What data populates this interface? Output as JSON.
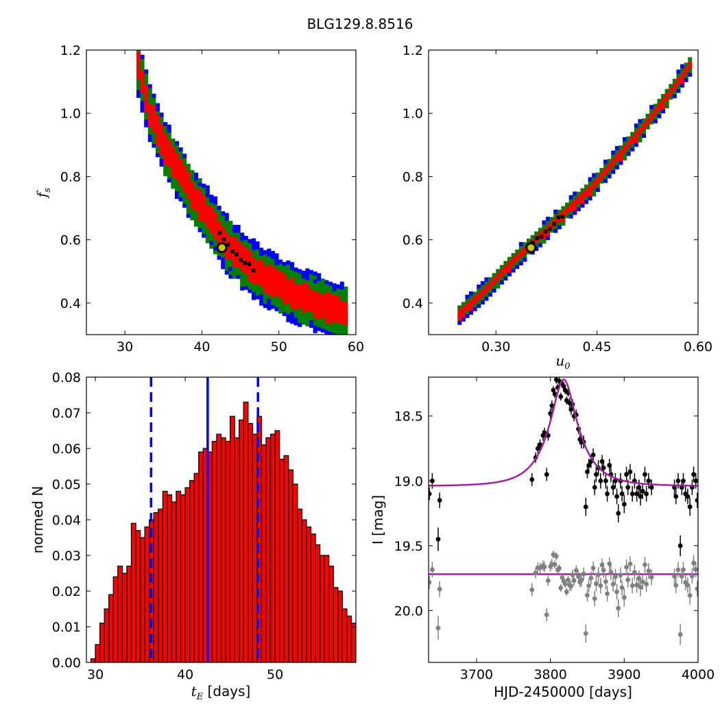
{
  "figure": {
    "title": "BLG129.8.8516"
  },
  "chart_data": [
    {
      "type": "heatmap",
      "xlim": [
        25,
        60
      ],
      "ylim": [
        0.3,
        1.2
      ],
      "xticks": [
        30,
        40,
        50,
        60
      ],
      "yticks": [
        0.4,
        0.6,
        0.8,
        1.0,
        1.2
      ],
      "xtick_labels": [
        "30",
        "40",
        "50",
        "60"
      ],
      "ytick_labels": [
        "0.4",
        "0.6",
        "0.8",
        "1.0",
        "1.2"
      ],
      "xlabel": "",
      "ylabel": "f_s",
      "confidence_colors": {
        "outer": "#0000ff",
        "middle": "#008000",
        "inner": "#ff0000",
        "core": "#000000"
      },
      "band_centerline": [
        [
          31.5,
          1.14
        ],
        [
          33,
          1.0
        ],
        [
          35,
          0.88
        ],
        [
          37,
          0.8
        ],
        [
          39,
          0.72
        ],
        [
          41,
          0.65
        ],
        [
          43,
          0.58
        ],
        [
          45,
          0.53
        ],
        [
          47,
          0.49
        ],
        [
          49,
          0.46
        ],
        [
          51,
          0.43
        ],
        [
          53,
          0.41
        ],
        [
          55,
          0.39
        ],
        [
          57,
          0.37
        ],
        [
          58.5,
          0.36
        ]
      ],
      "best_fit": {
        "x": 42.6,
        "y": 0.575
      },
      "marker_colors": {
        "ring": "#000000",
        "fill": "#c8c800"
      }
    },
    {
      "type": "heatmap",
      "xlim": [
        0.2,
        0.6
      ],
      "ylim": [
        0.3,
        1.2
      ],
      "xticks": [
        0.3,
        0.45,
        0.6
      ],
      "yticks": [
        0.4,
        0.6,
        0.8,
        1.0,
        1.2
      ],
      "xtick_labels": [
        "0.30",
        "0.45",
        "0.60"
      ],
      "ytick_labels": [
        "0.4",
        "0.6",
        "0.8",
        "1.0",
        "1.2"
      ],
      "xlabel": "u_0",
      "ylabel": "",
      "band_centerline": [
        [
          0.243,
          0.36
        ],
        [
          0.28,
          0.43
        ],
        [
          0.32,
          0.52
        ],
        [
          0.36,
          0.6
        ],
        [
          0.4,
          0.68
        ],
        [
          0.44,
          0.76
        ],
        [
          0.48,
          0.86
        ],
        [
          0.52,
          0.96
        ],
        [
          0.56,
          1.07
        ],
        [
          0.59,
          1.16
        ]
      ],
      "best_fit": {
        "x": 0.352,
        "y": 0.575
      }
    },
    {
      "type": "bar",
      "xlim": [
        29,
        59
      ],
      "ylim": [
        0,
        0.08
      ],
      "xticks": [
        30,
        40,
        50
      ],
      "yticks": [
        0.0,
        0.01,
        0.02,
        0.03,
        0.04,
        0.05,
        0.06,
        0.07,
        0.08
      ],
      "xtick_labels": [
        "30",
        "40",
        "50"
      ],
      "ytick_labels": [
        "0.00",
        "0.01",
        "0.02",
        "0.03",
        "0.04",
        "0.05",
        "0.06",
        "0.07",
        "0.08"
      ],
      "xlabel": "t_E",
      "xlabel_unit": "[days]",
      "ylabel": "normed N",
      "bin_start": 29.5,
      "bin_width": 0.5,
      "values": [
        0.001,
        0.005,
        0.011,
        0.015,
        0.019,
        0.024,
        0.027,
        0.025,
        0.027,
        0.039,
        0.037,
        0.035,
        0.038,
        0.04,
        0.042,
        0.043,
        0.048,
        0.047,
        0.045,
        0.048,
        0.047,
        0.049,
        0.051,
        0.053,
        0.059,
        0.06,
        0.059,
        0.062,
        0.064,
        0.063,
        0.062,
        0.069,
        0.063,
        0.068,
        0.073,
        0.067,
        0.064,
        0.069,
        0.061,
        0.063,
        0.064,
        0.065,
        0.057,
        0.058,
        0.054,
        0.05,
        0.043,
        0.04,
        0.038,
        0.036,
        0.033,
        0.03,
        0.03,
        0.027,
        0.021,
        0.02,
        0.015,
        0.013,
        0.011,
        0.008,
        0.007,
        0.006,
        0.004,
        0.003,
        0.002,
        0.001,
        0.001,
        0.0005
      ],
      "median": 42.5,
      "lower": 36.2,
      "upper": 48.1,
      "colors": {
        "bar": "#ff0000",
        "line": "#0000ff"
      }
    },
    {
      "type": "scatter",
      "xlim": [
        3635,
        4000
      ],
      "ylim": [
        20.4,
        18.2
      ],
      "xticks": [
        3700,
        3800,
        3900,
        4000
      ],
      "yticks": [
        18.5,
        19.0,
        19.5,
        20.0
      ],
      "xtick_labels": [
        "3700",
        "3800",
        "3900",
        "4000"
      ],
      "ytick_labels": [
        "18.5",
        "19.0",
        "19.5",
        "20.0"
      ],
      "xlabel": "HJD-2450000 [days]",
      "ylabel": "I [mag]",
      "model": {
        "t0": 3818,
        "tE": 42.5,
        "u0": 0.352,
        "fs": 0.575,
        "baseline": 19.04
      },
      "residual_offset": 19.72,
      "colors": {
        "data": "#000000",
        "residual": "#808080",
        "model": "#a020a0"
      },
      "series": [
        {
          "points": [
            [
              3636,
              19.1,
              0.05
            ],
            [
              3640,
              19.0,
              0.06
            ],
            [
              3648,
              19.45,
              0.09
            ],
            [
              3650,
              19.15,
              0.06
            ],
            [
              3775,
              18.99,
              0.05
            ],
            [
              3780,
              18.82,
              0.04
            ],
            [
              3783,
              18.75,
              0.04
            ],
            [
              3786,
              18.72,
              0.04
            ],
            [
              3790,
              18.65,
              0.04
            ],
            [
              3792,
              18.63,
              0.04
            ],
            [
              3795,
              18.95,
              0.05
            ],
            [
              3797,
              18.65,
              0.04
            ],
            [
              3800,
              18.48,
              0.04
            ],
            [
              3802,
              18.42,
              0.04
            ],
            [
              3804,
              18.3,
              0.03
            ],
            [
              3806,
              18.33,
              0.03
            ],
            [
              3808,
              18.22,
              0.03
            ],
            [
              3810,
              18.28,
              0.03
            ],
            [
              3812,
              18.23,
              0.03
            ],
            [
              3814,
              18.35,
              0.03
            ],
            [
              3816,
              18.25,
              0.03
            ],
            [
              3818,
              18.27,
              0.03
            ],
            [
              3820,
              18.3,
              0.03
            ],
            [
              3822,
              18.38,
              0.03
            ],
            [
              3824,
              18.32,
              0.03
            ],
            [
              3826,
              18.4,
              0.04
            ],
            [
              3828,
              18.45,
              0.04
            ],
            [
              3830,
              18.41,
              0.04
            ],
            [
              3832,
              18.5,
              0.04
            ],
            [
              3835,
              18.49,
              0.04
            ],
            [
              3838,
              18.6,
              0.04
            ],
            [
              3840,
              18.68,
              0.04
            ],
            [
              3842,
              18.7,
              0.05
            ],
            [
              3845,
              18.7,
              0.05
            ],
            [
              3848,
              19.2,
              0.07
            ],
            [
              3850,
              18.93,
              0.05
            ],
            [
              3852,
              18.88,
              0.05
            ],
            [
              3855,
              18.85,
              0.05
            ],
            [
              3858,
              18.8,
              0.05
            ],
            [
              3860,
              19.05,
              0.06
            ],
            [
              3862,
              18.95,
              0.06
            ],
            [
              3865,
              18.9,
              0.06
            ],
            [
              3868,
              19.0,
              0.06
            ],
            [
              3870,
              18.85,
              0.05
            ],
            [
              3872,
              18.9,
              0.06
            ],
            [
              3875,
              19.0,
              0.06
            ],
            [
              3877,
              19.1,
              0.06
            ],
            [
              3880,
              18.88,
              0.05
            ],
            [
              3882,
              18.95,
              0.06
            ],
            [
              3885,
              19.05,
              0.06
            ],
            [
              3888,
              19.0,
              0.06
            ],
            [
              3890,
              19.12,
              0.06
            ],
            [
              3892,
              19.25,
              0.07
            ],
            [
              3895,
              19.0,
              0.06
            ],
            [
              3897,
              19.1,
              0.06
            ],
            [
              3900,
              19.18,
              0.07
            ],
            [
              3903,
              18.95,
              0.06
            ],
            [
              3905,
              19.05,
              0.06
            ],
            [
              3908,
              18.93,
              0.06
            ],
            [
              3911,
              19.1,
              0.06
            ],
            [
              3914,
              19.0,
              0.06
            ],
            [
              3917,
              19.1,
              0.06
            ],
            [
              3920,
              19.05,
              0.06
            ],
            [
              3922,
              19.12,
              0.07
            ],
            [
              3925,
              19.08,
              0.06
            ],
            [
              3928,
              18.95,
              0.06
            ],
            [
              3930,
              19.1,
              0.06
            ],
            [
              3933,
              19.0,
              0.06
            ],
            [
              3937,
              19.05,
              0.06
            ],
            [
              3968,
              19.05,
              0.06
            ],
            [
              3970,
              19.12,
              0.06
            ],
            [
              3973,
              19.0,
              0.06
            ],
            [
              3976,
              19.5,
              0.08
            ],
            [
              3978,
              19.05,
              0.06
            ],
            [
              3980,
              19.0,
              0.06
            ],
            [
              3983,
              19.1,
              0.06
            ],
            [
              3986,
              19.12,
              0.06
            ],
            [
              3989,
              19.2,
              0.07
            ],
            [
              3992,
              19.05,
              0.06
            ],
            [
              3994,
              18.95,
              0.06
            ],
            [
              3997,
              19.0,
              0.06
            ],
            [
              3999,
              19.15,
              0.06
            ]
          ]
        }
      ]
    }
  ]
}
